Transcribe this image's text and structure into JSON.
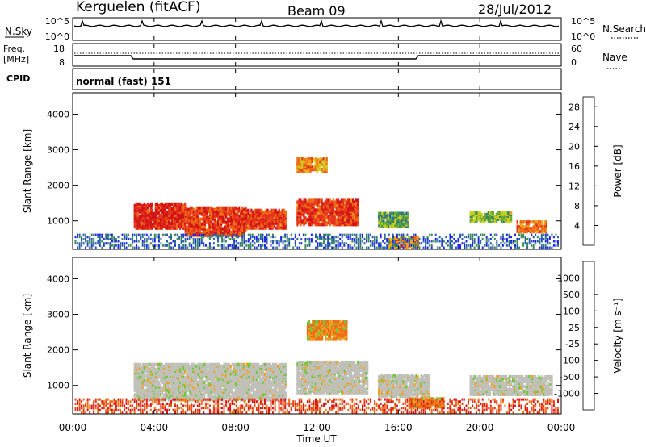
{
  "header": {
    "station": "Kerguelen (fitACF)",
    "beam": "Beam 09",
    "date": "28/Jul/2012"
  },
  "noise_panel": {
    "left_label": "N.Sky",
    "right_label": "N.Search",
    "left_ticks": [
      "10^5",
      "10^0"
    ],
    "right_ticks": [
      "10^5",
      "10^0"
    ]
  },
  "freq_panel": {
    "left_label_line1": "Freq.",
    "left_label_line2": "[MHz]",
    "left_ticks": [
      "18",
      "8"
    ],
    "right_label": "Nave",
    "right_ticks": [
      "60",
      "0"
    ]
  },
  "cpid": {
    "label": "CPID",
    "text": "normal (fast) 151"
  },
  "colors": {
    "power": [
      "#1e28e6",
      "#2a5fb0",
      "#3a8a5c",
      "#6aaa3a",
      "#c8d21e",
      "#f2a41e",
      "#ee6a14",
      "#e6321e",
      "#d21414"
    ],
    "velocity": [
      "#283cd2",
      "#3c78b4",
      "#3ca050",
      "#6ec83c",
      "#c0c0b8",
      "#c0c0b8",
      "#f0a01e",
      "#f06e14",
      "#e63c14",
      "#dc1414"
    ]
  },
  "chart_data": [
    {
      "type": "heatmap",
      "title": "",
      "ylabel": "Slant Range [km]",
      "xlabel": "",
      "xlim": [
        "00:00",
        "00:00"
      ],
      "ylim": [
        200,
        4600
      ],
      "x_ticks": [
        "00:00",
        "04:00",
        "08:00",
        "12:00",
        "16:00",
        "20:00",
        "00:00"
      ],
      "y_ticks": [
        "1000",
        "2000",
        "3000",
        "4000"
      ],
      "colorbar": {
        "label": "Power [dB]",
        "ticks": [
          "4",
          "8",
          "12",
          "16",
          "20",
          "24",
          "28"
        ],
        "range": [
          0,
          30
        ]
      },
      "regions": [
        {
          "t_start": 3.0,
          "t_end": 5.5,
          "range_low": 800,
          "range_high": 1500,
          "power_db": 28
        },
        {
          "t_start": 5.5,
          "t_end": 8.5,
          "range_low": 600,
          "range_high": 1400,
          "power_db": 26
        },
        {
          "t_start": 8.5,
          "t_end": 10.5,
          "range_low": 800,
          "range_high": 1300,
          "power_db": 26
        },
        {
          "t_start": 11.0,
          "t_end": 14.0,
          "range_low": 900,
          "range_high": 1600,
          "power_db": 26
        },
        {
          "t_start": 11.0,
          "t_end": 12.5,
          "range_low": 2400,
          "range_high": 2800,
          "power_db": 20
        },
        {
          "t_start": 15.0,
          "t_end": 16.5,
          "range_low": 850,
          "range_high": 1250,
          "power_db": 10
        },
        {
          "t_start": 15.5,
          "t_end": 17.0,
          "range_low": 250,
          "range_high": 550,
          "power_db": 20
        },
        {
          "t_start": 19.5,
          "t_end": 21.5,
          "range_low": 1000,
          "range_high": 1250,
          "power_db": 12
        },
        {
          "t_start": 21.8,
          "t_end": 23.3,
          "range_low": 700,
          "range_high": 1000,
          "power_db": 22
        }
      ]
    },
    {
      "type": "heatmap",
      "title": "",
      "ylabel": "Slant Range [km]",
      "xlabel": "Time UT",
      "xlim": [
        "00:00",
        "00:00"
      ],
      "ylim": [
        200,
        4600
      ],
      "x_ticks": [
        "00:00",
        "04:00",
        "08:00",
        "12:00",
        "16:00",
        "20:00",
        "00:00"
      ],
      "y_ticks": [
        "1000",
        "2000",
        "3000",
        "4000"
      ],
      "colorbar": {
        "label": "Velocity [m s⁻¹]",
        "ticks": [
          "1000",
          "500",
          "100",
          "25",
          "-25",
          "-100",
          "-500",
          "-1000"
        ]
      },
      "regions": [
        {
          "t_start": 3.0,
          "t_end": 10.5,
          "range_low": 600,
          "range_high": 1600,
          "velocity": 0
        },
        {
          "t_start": 11.0,
          "t_end": 14.5,
          "range_low": 800,
          "range_high": 1700,
          "velocity": 0
        },
        {
          "t_start": 11.5,
          "t_end": 13.5,
          "range_low": 2300,
          "range_high": 2800,
          "velocity": -150
        },
        {
          "t_start": 15.0,
          "t_end": 17.5,
          "range_low": 700,
          "range_high": 1300,
          "velocity": 0
        },
        {
          "t_start": 16.5,
          "t_end": 18.2,
          "range_low": 400,
          "range_high": 650,
          "velocity": -200
        },
        {
          "t_start": 19.5,
          "t_end": 23.5,
          "range_low": 750,
          "range_high": 1250,
          "velocity": 0
        }
      ]
    }
  ]
}
